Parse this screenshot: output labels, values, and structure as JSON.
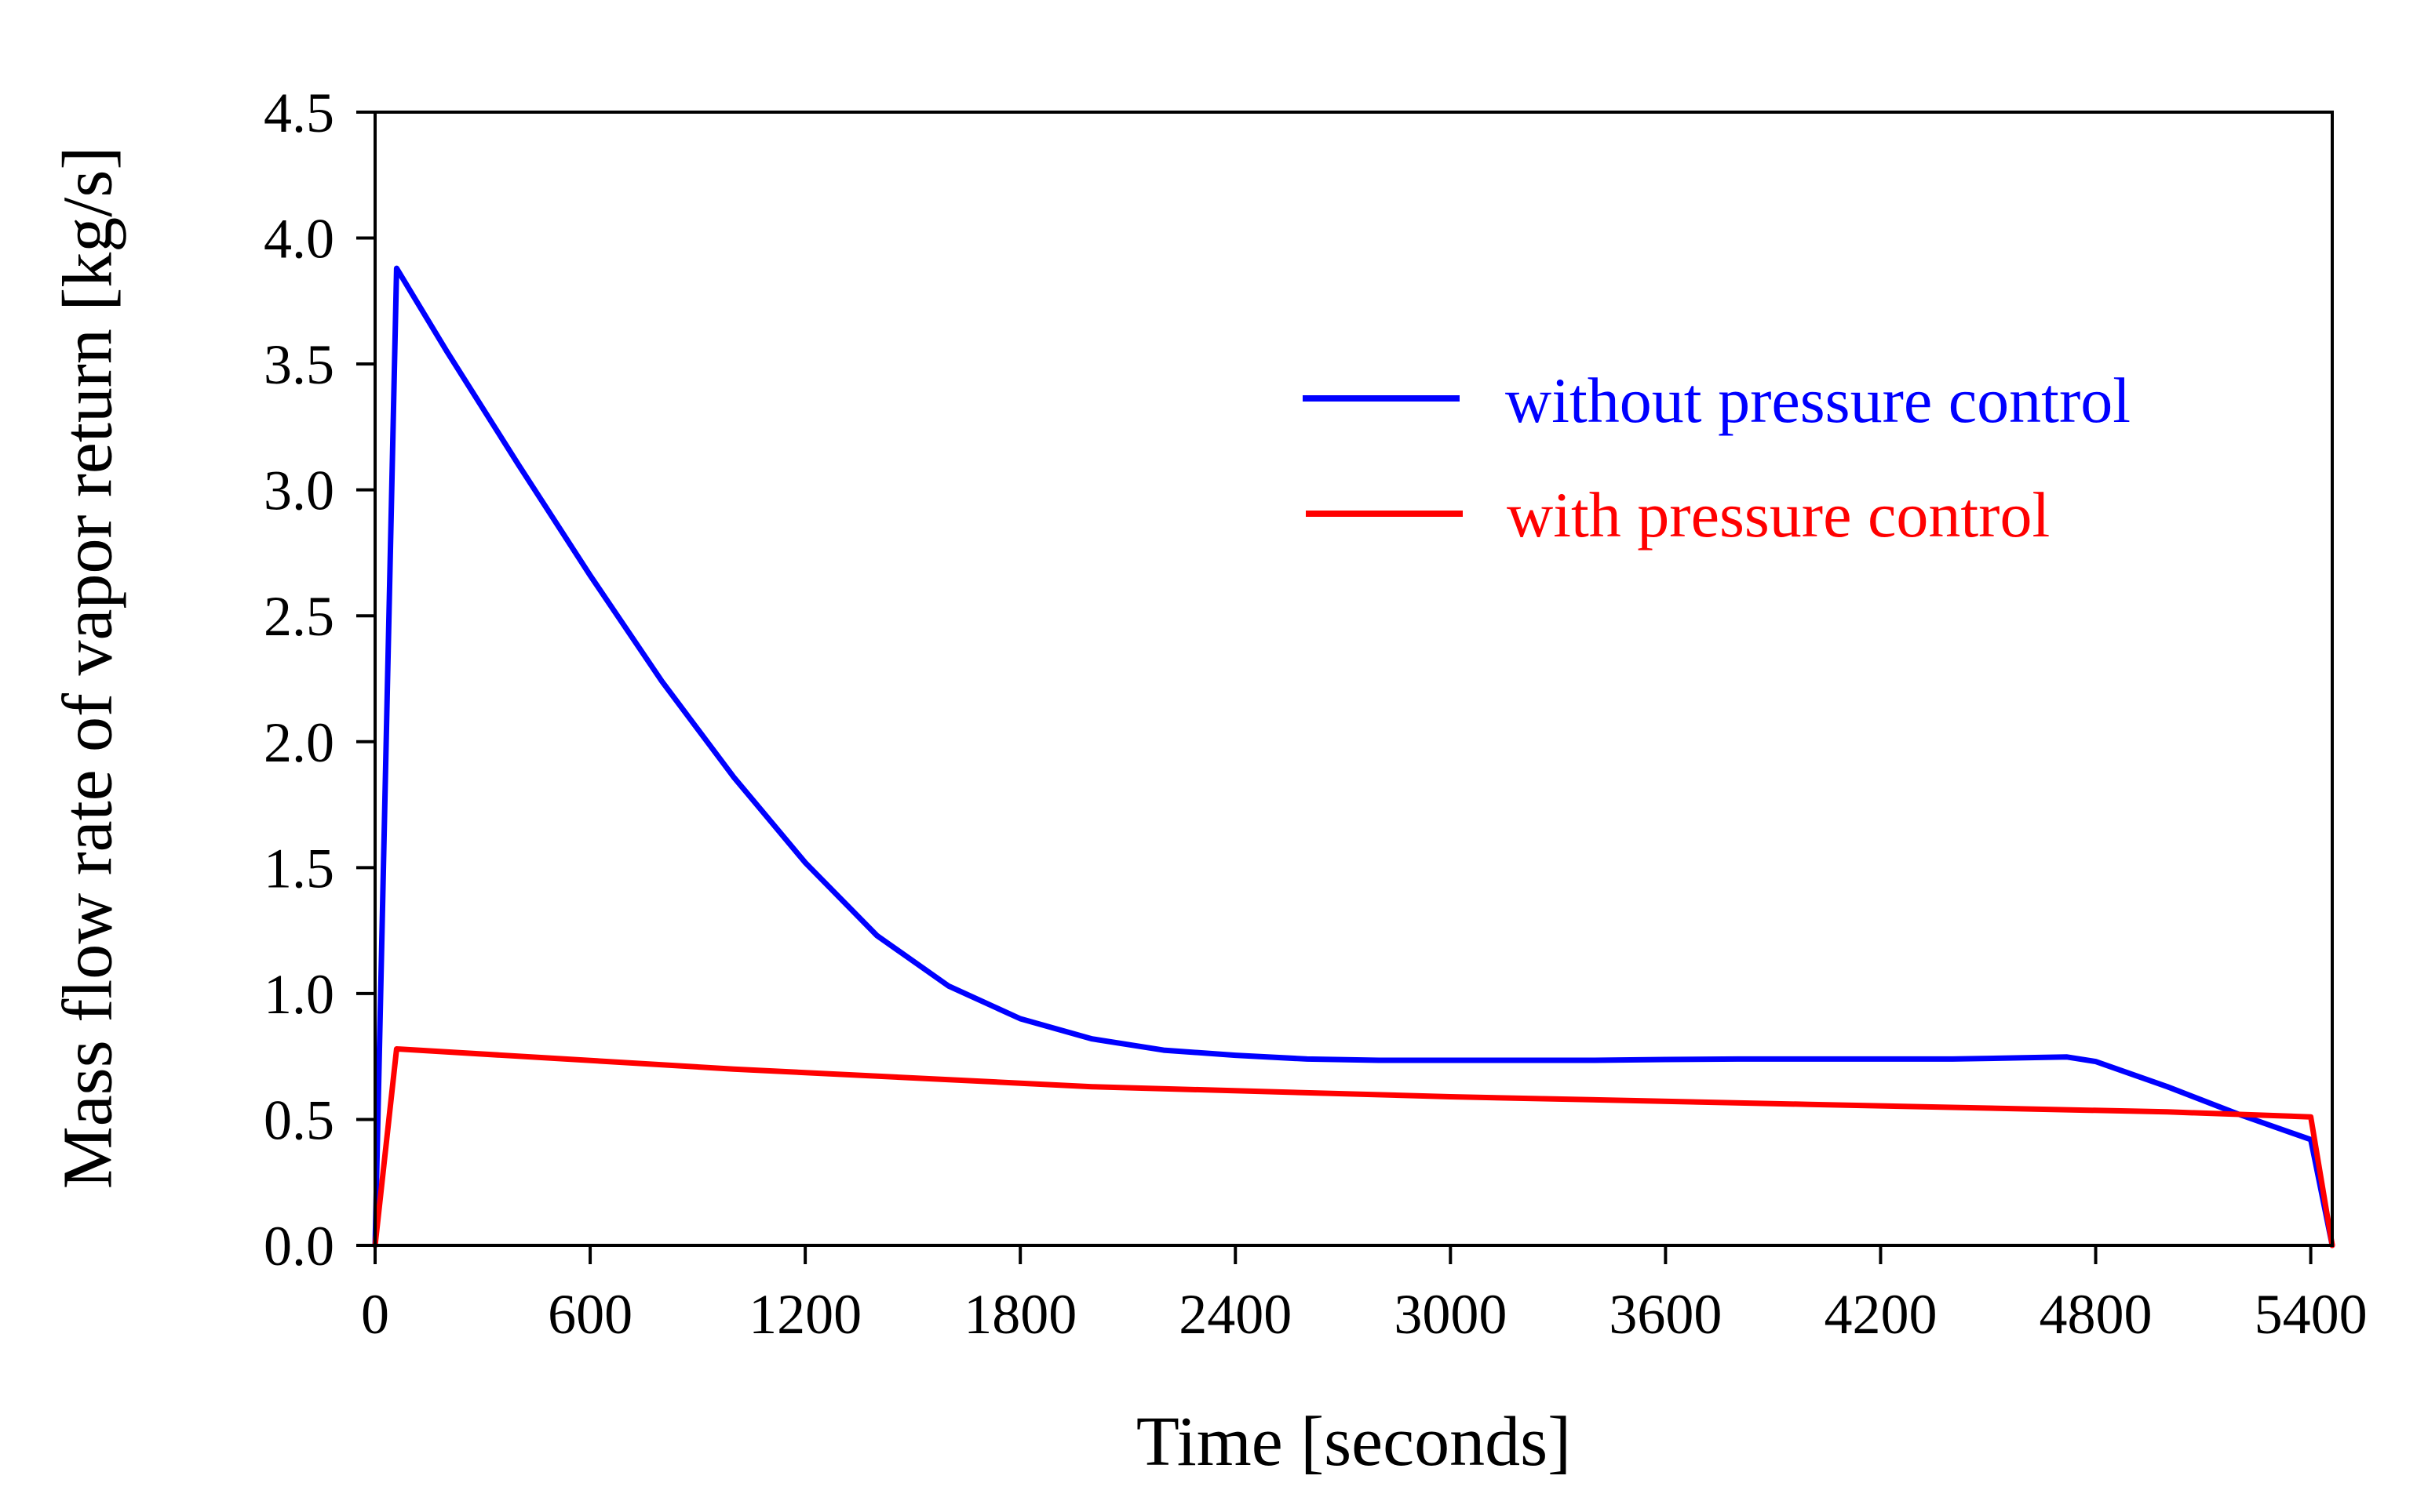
{
  "chart_data": {
    "type": "line",
    "title": "",
    "xlabel": "Time [seconds]",
    "ylabel": "Mass flow rate of vapor return [kg/s]",
    "xlim": [
      0,
      5460
    ],
    "ylim": [
      0,
      4.5
    ],
    "xticks": [
      0,
      600,
      1200,
      1800,
      2400,
      3000,
      3600,
      4200,
      4800,
      5400
    ],
    "yticks": [
      0.0,
      0.5,
      1.0,
      1.5,
      2.0,
      2.5,
      3.0,
      3.5,
      4.0,
      4.5
    ],
    "ytick_labels": [
      "0.0",
      "0.5",
      "1.0",
      "1.5",
      "2.0",
      "2.5",
      "3.0",
      "3.5",
      "4.0",
      "4.5"
    ],
    "xtick_labels": [
      "0",
      "600",
      "1200",
      "1800",
      "2400",
      "3000",
      "3600",
      "4200",
      "4800",
      "5400"
    ],
    "grid": false,
    "legend_position": "top-right",
    "series": [
      {
        "name": "without pressure control",
        "color": "#0000ff",
        "x": [
          0,
          60,
          200,
          400,
          600,
          800,
          1000,
          1200,
          1400,
          1600,
          1800,
          2000,
          2200,
          2400,
          2600,
          2800,
          3000,
          3200,
          3400,
          3600,
          3800,
          4000,
          4200,
          4400,
          4600,
          4720,
          4800,
          5000,
          5200,
          5400,
          5460
        ],
        "y": [
          0,
          3.88,
          3.55,
          3.1,
          2.66,
          2.24,
          1.86,
          1.52,
          1.23,
          1.03,
          0.9,
          0.82,
          0.775,
          0.755,
          0.74,
          0.735,
          0.735,
          0.735,
          0.735,
          0.738,
          0.74,
          0.74,
          0.74,
          0.74,
          0.745,
          0.748,
          0.73,
          0.63,
          0.52,
          0.42,
          0
        ]
      },
      {
        "name": "with pressure control",
        "color": "#ff0000",
        "x": [
          0,
          60,
          1000,
          2000,
          3000,
          4000,
          5000,
          5400,
          5460
        ],
        "y": [
          0,
          0.78,
          0.7,
          0.63,
          0.59,
          0.56,
          0.53,
          0.51,
          0
        ]
      }
    ]
  }
}
